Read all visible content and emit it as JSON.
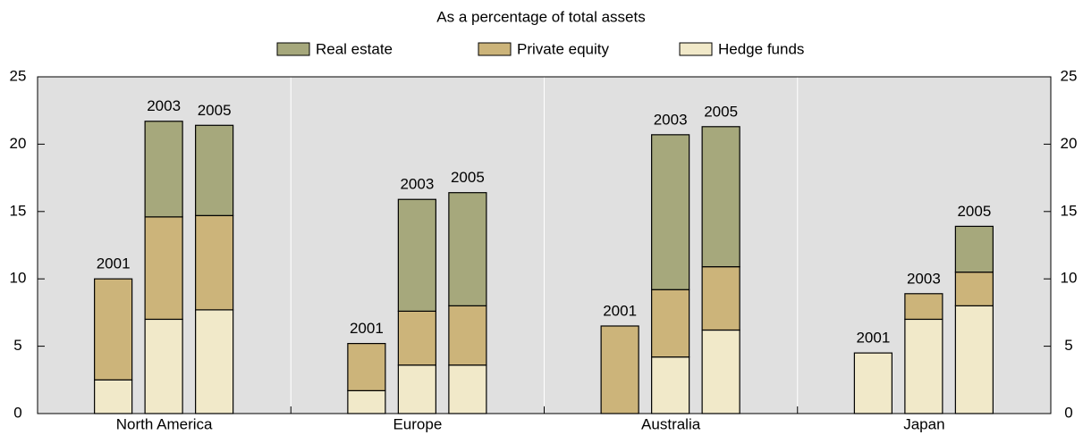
{
  "chart_data": {
    "type": "stacked-grouped-bar",
    "title": "As a percentage of total assets",
    "groups": [
      "North America",
      "Europe",
      "Australia",
      "Japan"
    ],
    "categories": [
      "2001",
      "2003",
      "2005",
      "2001",
      "2003",
      "2005",
      "2001",
      "2003",
      "2005",
      "2001",
      "2003",
      "2005"
    ],
    "series": [
      {
        "name": "Hedge funds",
        "color": "#f1e9c9",
        "values": [
          2.5,
          7.0,
          7.7,
          1.7,
          3.6,
          3.6,
          0,
          4.2,
          6.2,
          4.5,
          7.0,
          8.0
        ]
      },
      {
        "name": "Private equity",
        "color": "#ccb47a",
        "values": [
          7.5,
          7.6,
          7.0,
          3.5,
          4.0,
          4.4,
          6.5,
          5.0,
          4.7,
          0,
          1.9,
          2.5
        ]
      },
      {
        "name": "Real estate",
        "color": "#a6a87c",
        "values": [
          0,
          7.1,
          6.7,
          0,
          8.3,
          8.4,
          0,
          11.5,
          10.4,
          0,
          0,
          3.4
        ]
      }
    ],
    "ylim": [
      0,
      25
    ],
    "yticks": [
      0,
      5,
      10,
      15,
      20,
      25
    ],
    "y2lim": [
      0,
      25
    ],
    "y2ticks": [
      0,
      5,
      10,
      15,
      20,
      25
    ]
  }
}
